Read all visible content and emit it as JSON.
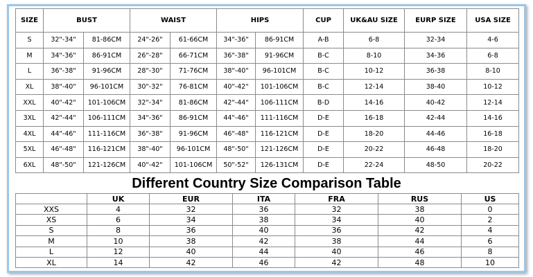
{
  "size_table": {
    "headers": [
      "SIZE",
      "BUST",
      "WAIST",
      "HIPS",
      "CUP",
      "UK&AU SIZE",
      "EURP SIZE",
      "USA SIZE"
    ],
    "rows": [
      [
        "S",
        "32\"-34\"",
        "81-86CM",
        "24\"-26\"",
        "61-66CM",
        "34\"-36\"",
        "86-91CM",
        "A-B",
        "6-8",
        "32-34",
        "4-6"
      ],
      [
        "M",
        "34\"-36\"",
        "86-91CM",
        "26\"-28\"",
        "66-71CM",
        "36\"-38\"",
        "91-96CM",
        "B-C",
        "8-10",
        "34-36",
        "6-8"
      ],
      [
        "L",
        "36\"-38\"",
        "91-96CM",
        "28\"-30\"",
        "71-76CM",
        "38\"-40\"",
        "96-101CM",
        "B-C",
        "10-12",
        "36-38",
        "8-10"
      ],
      [
        "XL",
        "38\"-40\"",
        "96-101CM",
        "30\"-32\"",
        "76-81CM",
        "40\"-42\"",
        "101-106CM",
        "B-C",
        "12-14",
        "38-40",
        "10-12"
      ],
      [
        "XXL",
        "40\"-42\"",
        "101-106CM",
        "32\"-34\"",
        "81-86CM",
        "42\"-44\"",
        "106-111CM",
        "B-D",
        "14-16",
        "40-42",
        "12-14"
      ],
      [
        "3XL",
        "42\"-44\"",
        "106-111CM",
        "34\"-36\"",
        "86-91CM",
        "44\"-46\"",
        "111-116CM",
        "D-E",
        "16-18",
        "42-44",
        "14-16"
      ],
      [
        "4XL",
        "44\"-46\"",
        "111-116CM",
        "36\"-38\"",
        "91-96CM",
        "46\"-48\"",
        "116-121CM",
        "D-E",
        "18-20",
        "44-46",
        "16-18"
      ],
      [
        "5XL",
        "46\"-48\"",
        "116-121CM",
        "38\"-40\"",
        "96-101CM",
        "48\"-50\"",
        "121-126CM",
        "D-E",
        "20-22",
        "46-48",
        "18-20"
      ],
      [
        "6XL",
        "48\"-50\"",
        "121-126CM",
        "40\"-42\"",
        "101-106CM",
        "50\"-52\"",
        "126-131CM",
        "D-E",
        "22-24",
        "48-50",
        "20-22"
      ]
    ]
  },
  "title": "Different Country Size Comparison Table",
  "comparison_table": {
    "headers": [
      "UK",
      "EUR",
      "ITA",
      "FRA",
      "RUS",
      "US"
    ],
    "rows": [
      [
        "XXS",
        4,
        32,
        36,
        32,
        38,
        0
      ],
      [
        "XS",
        6,
        34,
        38,
        34,
        40,
        2
      ],
      [
        "S",
        8,
        36,
        40,
        36,
        42,
        4
      ],
      [
        "M",
        10,
        38,
        42,
        38,
        44,
        6
      ],
      [
        "L",
        12,
        40,
        44,
        40,
        46,
        8
      ],
      [
        "XL",
        14,
        42,
        46,
        42,
        48,
        10
      ]
    ]
  }
}
